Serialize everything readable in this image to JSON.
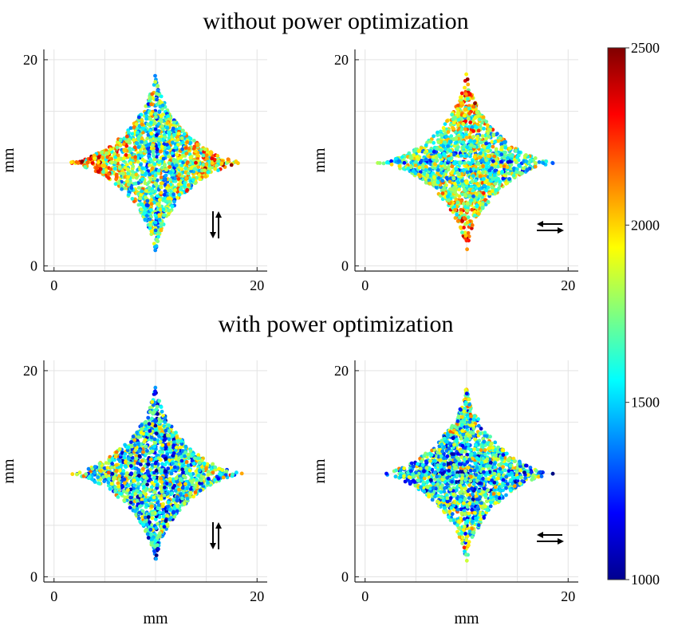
{
  "figure": {
    "row_titles": [
      "without power optimization",
      "with power optimization"
    ],
    "colorbar": {
      "min": 1000,
      "max": 2500,
      "ticks": [
        1000,
        1500,
        2000,
        2500
      ],
      "colormap": "jet"
    }
  },
  "chart_data": [
    {
      "type": "scatter",
      "panel": "top-left",
      "row_title": "without power optimization",
      "xlabel": "",
      "ylabel": "mm",
      "xlim": [
        -1,
        21
      ],
      "ylim": [
        -0.5,
        21
      ],
      "xticks": [
        0,
        20
      ],
      "yticks": [
        0,
        20
      ],
      "grid": true,
      "shape": "astroid star",
      "center": [
        10,
        10
      ],
      "half_width_x": 9,
      "half_height_y": 9,
      "scan_direction": "vertical",
      "value_range": [
        1000,
        2500
      ],
      "hot_regions": "left and right arms",
      "cool_regions": "vertical center band",
      "variation": "high"
    },
    {
      "type": "scatter",
      "panel": "top-right",
      "row_title": "without power optimization",
      "xlabel": "",
      "ylabel": "mm",
      "xlim": [
        -1,
        21
      ],
      "ylim": [
        -0.5,
        21
      ],
      "xticks": [
        0,
        20
      ],
      "yticks": [
        0,
        20
      ],
      "grid": true,
      "shape": "astroid star",
      "center": [
        10,
        10
      ],
      "half_width_x": 9,
      "half_height_y": 9,
      "scan_direction": "horizontal",
      "value_range": [
        1000,
        2500
      ],
      "hot_regions": "top and bottom arms",
      "cool_regions": "horizontal center band",
      "variation": "high"
    },
    {
      "type": "scatter",
      "panel": "bottom-left",
      "row_title": "with power optimization",
      "xlabel": "mm",
      "ylabel": "mm",
      "xlim": [
        -1,
        21
      ],
      "ylim": [
        -0.5,
        21
      ],
      "xticks": [
        0,
        20
      ],
      "yticks": [
        0,
        20
      ],
      "grid": true,
      "shape": "astroid star",
      "center": [
        10,
        10
      ],
      "half_width_x": 9,
      "half_height_y": 9,
      "scan_direction": "vertical",
      "value_range": [
        1000,
        2500
      ],
      "hot_regions": "none",
      "cool_regions": "none",
      "variation": "moderate"
    },
    {
      "type": "scatter",
      "panel": "bottom-right",
      "row_title": "with power optimization",
      "xlabel": "mm",
      "ylabel": "mm",
      "xlim": [
        -1,
        21
      ],
      "ylim": [
        -0.5,
        21
      ],
      "xticks": [
        0,
        20
      ],
      "yticks": [
        0,
        20
      ],
      "grid": true,
      "shape": "astroid star",
      "center": [
        10,
        10
      ],
      "half_width_x": 9,
      "half_height_y": 9,
      "scan_direction": "horizontal",
      "value_range": [
        1000,
        2500
      ],
      "hot_regions": "none",
      "cool_regions": "none",
      "variation": "moderate"
    }
  ]
}
